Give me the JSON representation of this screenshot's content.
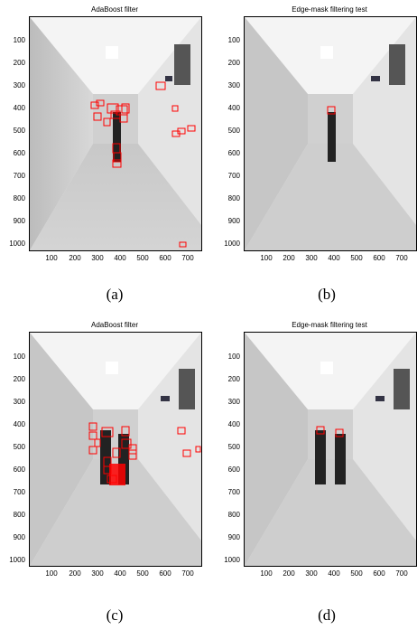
{
  "panels": [
    {
      "title": "AdaBoost filter",
      "caption": "(a)"
    },
    {
      "title": "Edge-mask filtering test",
      "caption": "(b)"
    },
    {
      "title": "AdaBoost filter",
      "caption": "(c)"
    },
    {
      "title": "Edge-mask filtering test",
      "caption": "(d)"
    }
  ],
  "axes": {
    "y_ticks": [
      "100",
      "200",
      "300",
      "400",
      "500",
      "600",
      "700",
      "800",
      "900",
      "1000"
    ],
    "x_ticks": [
      "100",
      "200",
      "300",
      "400",
      "500",
      "600",
      "700"
    ]
  },
  "colors": {
    "detection_box": "#ff0000"
  }
}
